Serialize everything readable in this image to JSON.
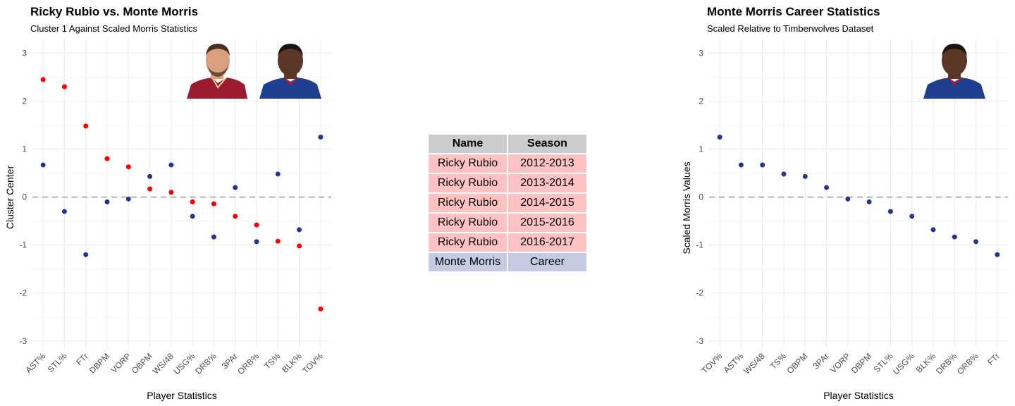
{
  "chart_data": [
    {
      "type": "scatter",
      "title": "Ricky Rubio vs. Monte Morris",
      "subtitle": "Cluster 1 Against Scaled Morris Statistics",
      "xlabel": "Player Statistics",
      "ylabel": "Cluster Center",
      "categories": [
        "AST%",
        "STL%",
        "FTr",
        "DBPM",
        "VORP",
        "OBPM",
        "WS/48",
        "USG%",
        "DRB%",
        "3PAr",
        "ORB%",
        "TS%",
        "BLK%",
        "TOV%"
      ],
      "yticks": [
        "-3",
        "-2",
        "-1",
        "0",
        "1",
        "2",
        "3"
      ],
      "ylim": [
        -3.15,
        3.3
      ],
      "reference_line": 0,
      "grid": true,
      "series": [
        {
          "color": "#ff0000",
          "values": [
            2.45,
            2.3,
            1.48,
            0.8,
            0.63,
            0.17,
            0.1,
            -0.1,
            -0.14,
            -0.4,
            -0.58,
            -0.92,
            -1.02,
            -2.33
          ]
        },
        {
          "color": "#26358a",
          "values": [
            0.67,
            -0.3,
            -1.2,
            -0.1,
            -0.04,
            0.43,
            0.67,
            -0.4,
            -0.83,
            0.2,
            -0.93,
            0.48,
            -0.68,
            1.25
          ]
        }
      ]
    },
    {
      "type": "scatter",
      "title": "Monte Morris Career Statistics",
      "subtitle": "Scaled Relative to Timberwolves Dataset",
      "xlabel": "Player Statistics",
      "ylabel": "Scaled Morris Values",
      "categories": [
        "TOV%",
        "AST%",
        "WS/48",
        "TS%",
        "OBPM",
        "3PAr",
        "VORP",
        "DBPM",
        "STL%",
        "USG%",
        "BLK%",
        "DRB%",
        "ORB%",
        "FTr"
      ],
      "yticks": [
        "-3",
        "-2",
        "-1",
        "0",
        "1",
        "2",
        "3"
      ],
      "ylim": [
        -3.15,
        3.3
      ],
      "reference_line": 0,
      "grid": true,
      "series": [
        {
          "color": "#26358a",
          "values": [
            1.25,
            0.67,
            0.67,
            0.48,
            0.43,
            0.2,
            -0.04,
            -0.1,
            -0.3,
            -0.4,
            -0.68,
            -0.83,
            -0.93,
            -1.2
          ]
        }
      ]
    }
  ],
  "table": {
    "headers": {
      "name": "Name",
      "season": "Season"
    },
    "rows": [
      {
        "name": "Ricky Rubio",
        "season": "2012-2013",
        "color": "#ffc2c2"
      },
      {
        "name": "Ricky Rubio",
        "season": "2013-2014",
        "color": "#ffc2c2"
      },
      {
        "name": "Ricky Rubio",
        "season": "2014-2015",
        "color": "#ffc2c2"
      },
      {
        "name": "Ricky Rubio",
        "season": "2015-2016",
        "color": "#ffc2c2"
      },
      {
        "name": "Ricky Rubio",
        "season": "2016-2017",
        "color": "#ffc2c2"
      },
      {
        "name": "Monte Morris",
        "season": "Career",
        "color": "#c6cbe3"
      }
    ]
  },
  "colors": {
    "rubio_jersey": "#9b1c2e",
    "morris_jersey": "#1d3f8e",
    "skin": "#d9a07f",
    "dark_skin": "#5a3726"
  }
}
